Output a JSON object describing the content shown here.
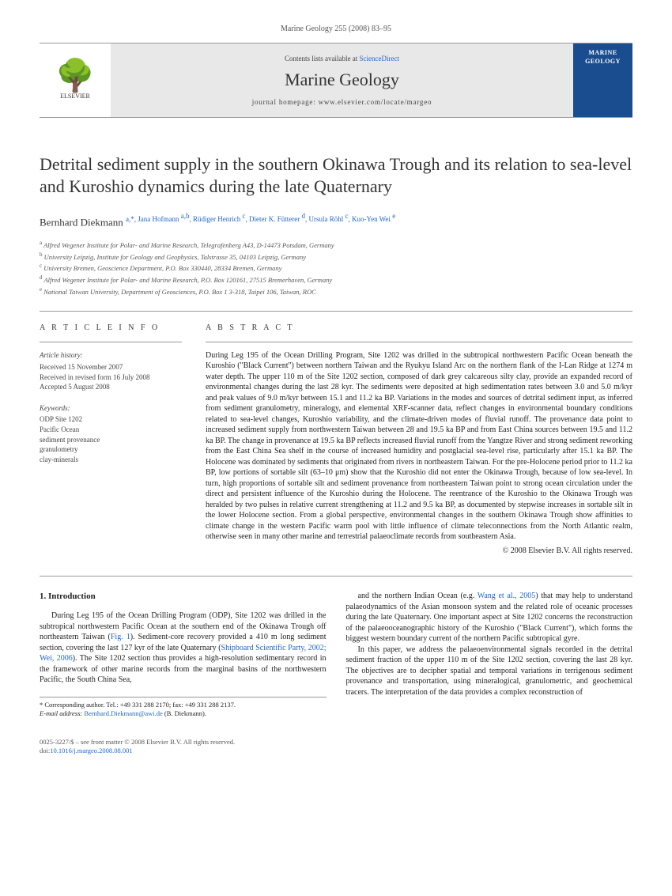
{
  "citation": "Marine Geology 255 (2008) 83–95",
  "header": {
    "contents_prefix": "Contents lists available at ",
    "contents_link": "ScienceDirect",
    "journal": "Marine Geology",
    "homepage_prefix": "journal homepage: ",
    "homepage": "www.elsevier.com/locate/margeo",
    "publisher": "ELSEVIER",
    "cover_label": "MARINE GEOLOGY"
  },
  "title": "Detrital sediment supply in the southern Okinawa Trough and its relation to sea-level and Kuroshio dynamics during the late Quaternary",
  "authors_html": "Bernhard Diekmann <sup>a,</sup><sup class='star'>*</sup>, Jana Hofmann <sup>a,b</sup>, Rüdiger Henrich <sup>c</sup>, Dieter K. Fütterer <sup>d</sup>, Ursula Röhl <sup>c</sup>, Kuo-Yen Wei <sup>e</sup>",
  "affiliations": [
    "Alfred Wegener Institute for Polar- and Marine Research, Telegrafenberg A43, D-14473 Potsdam, Germany",
    "University Leipzig, Institute for Geology and Geophysics, Talstrasse 35, 04103 Leipzig, Germany",
    "University Bremen, Geoscience Department, P.O. Box 330440, 28334 Bremen, Germany",
    "Alfred Wegener Institute for Polar- and Marine Research, P.O. Box 120161, 27515 Bremerhaven, Germany",
    "National Taiwan University, Department of Geosciences, P.O. Box 1 3-318, Taipei 106, Taiwan, ROC"
  ],
  "aff_letters": [
    "a",
    "b",
    "c",
    "d",
    "e"
  ],
  "info": {
    "heading": "A R T I C L E   I N F O",
    "history_label": "Article history:",
    "received": "Received 15 November 2007",
    "revised": "Received in revised form 16 July 2008",
    "accepted": "Accepted 5 August 2008",
    "keywords_label": "Keywords:",
    "keywords": [
      "ODP Site 1202",
      "Pacific Ocean",
      "sediment provenance",
      "granulometry",
      "clay-minerals"
    ]
  },
  "abstract": {
    "heading": "A B S T R A C T",
    "text": "During Leg 195 of the Ocean Drilling Program, Site 1202 was drilled in the subtropical northwestern Pacific Ocean beneath the Kuroshio (\"Black Current\") between northern Taiwan and the Ryukyu Island Arc on the northern flank of the I-Lan Ridge at 1274 m water depth. The upper 110 m of the Site 1202 section, composed of dark grey calcareous silty clay, provide an expanded record of environmental changes during the last 28 kyr. The sediments were deposited at high sedimentation rates between 3.0 and 5.0 m/kyr and peak values of 9.0 m/kyr between 15.1 and 11.2 ka BP. Variations in the modes and sources of detrital sediment input, as inferred from sediment granulometry, mineralogy, and elemental XRF-scanner data, reflect changes in environmental boundary conditions related to sea-level changes, Kuroshio variability, and the climate-driven modes of fluvial runoff. The provenance data point to increased sediment supply from northwestern Taiwan between 28 and 19.5 ka BP and from East China sources between 19.5 and 11.2 ka BP. The change in provenance at 19.5 ka BP reflects increased fluvial runoff from the Yangtze River and strong sediment reworking from the East China Sea shelf in the course of increased humidity and postglacial sea-level rise, particularly after 15.1 ka BP. The Holocene was dominated by sediments that originated from rivers in northeastern Taiwan. For the pre-Holocene period prior to 11.2 ka BP, low portions of sortable silt (63–10 μm) show that the Kuroshio did not enter the Okinawa Trough, because of low sea-level. In turn, high proportions of sortable silt and sediment provenance from northeastern Taiwan point to strong ocean circulation under the direct and persistent influence of the Kuroshio during the Holocene. The reentrance of the Kuroshio to the Okinawa Trough was heralded by two pulses in relative current strengthening at 11.2 and 9.5 ka BP, as documented by stepwise increases in sortable silt in the lower Holocene section. From a global perspective, environmental changes in the southern Okinawa Trough show affinities to climate change in the western Pacific warm pool with little influence of climate teleconnections from the North Atlantic realm, otherwise seen in many other marine and terrestrial palaeoclimate records from southeastern Asia.",
    "copyright": "© 2008 Elsevier B.V. All rights reserved."
  },
  "body": {
    "section_heading": "1. Introduction",
    "col1_p1a": "During Leg 195 of the Ocean Drilling Program (ODP), Site 1202 was drilled in the subtropical northwestern Pacific Ocean at the southern end of the Okinawa Trough off northeastern Taiwan (",
    "col1_fig1": "Fig. 1",
    "col1_p1b": "). Sediment-core recovery provided a 410 m long sediment section, covering the last 127 kyr of the late Quaternary (",
    "col1_ref1": "Shipboard Scientific Party, 2002; Wei, 2006",
    "col1_p1c": "). The Site 1202 section thus provides a high-resolution sedimentary record in the framework of other marine records from the marginal basins of the northwestern Pacific, the South China Sea,",
    "col2_p1a": "and the northern Indian Ocean (e.g. ",
    "col2_ref1": "Wang et al., 2005",
    "col2_p1b": ") that may help to understand palaeodynamics of the Asian monsoon system and the related role of oceanic processes during the late Quaternary. One important aspect at Site 1202 concerns the reconstruction of the palaeooceanographic history of the Kuroshio (\"Black Current\"), which forms the biggest western boundary current of the northern Pacific subtropical gyre.",
    "col2_p2": "In this paper, we address the palaeoenvironmental signals recorded in the detrital sediment fraction of the upper 110 m of the Site 1202 section, covering the last 28 kyr. The objectives are to decipher spatial and temporal variations in terrigenous sediment provenance and transportation, using mineralogical, granulometric, and geochemical tracers. The interpretation of the data provides a complex reconstruction of"
  },
  "footnote": {
    "corr": "* Corresponding author. Tel.: +49 331 288 2170; fax: +49 331 288 2137.",
    "email_label": "E-mail address: ",
    "email": "Bernhard.Diekmann@awi.de",
    "email_suffix": " (B. Diekmann)."
  },
  "bottom": {
    "issn": "0025-3227/$ – see front matter © 2008 Elsevier B.V. All rights reserved.",
    "doi_label": "doi:",
    "doi": "10.1016/j.margeo.2008.08.001"
  }
}
